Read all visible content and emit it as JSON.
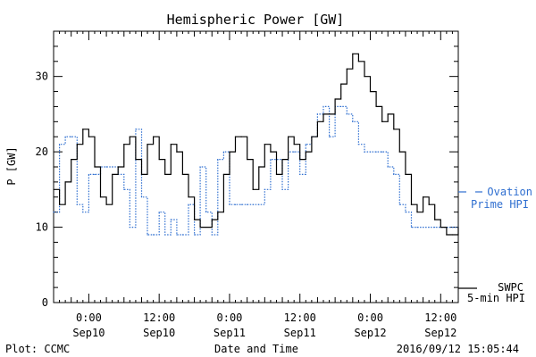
{
  "chart_data": {
    "type": "line",
    "title": "Hemispheric Power [GW]",
    "xlabel": "Date and Time",
    "ylabel": "P [GW]",
    "ylim": [
      0,
      36
    ],
    "xlim": [
      "2016-09-09T18:00",
      "2016-09-12T15:00"
    ],
    "y_ticks": [
      "0",
      "10",
      "20",
      "30"
    ],
    "x_ticks": [
      {
        "time": "2016-09-10T00:00",
        "label1": "0:00",
        "label2": "Sep10"
      },
      {
        "time": "2016-09-10T12:00",
        "label1": "12:00",
        "label2": "Sep10"
      },
      {
        "time": "2016-09-11T00:00",
        "label1": "0:00",
        "label2": "Sep11"
      },
      {
        "time": "2016-09-11T12:00",
        "label1": "12:00",
        "label2": "Sep11"
      },
      {
        "time": "2016-09-12T00:00",
        "label1": "0:00",
        "label2": "Sep12"
      },
      {
        "time": "2016-09-12T12:00",
        "label1": "12:00",
        "label2": "Sep12"
      }
    ],
    "grid": false,
    "series": [
      {
        "name": "SWPC 5-min HPI",
        "legend_lines": [
          "SWPC",
          "5-min HPI"
        ],
        "color": "#000000",
        "style": "solid",
        "x": [
          "2016-09-09T18:00",
          "2016-09-09T19:00",
          "2016-09-09T20:00",
          "2016-09-09T21:00",
          "2016-09-09T22:00",
          "2016-09-09T23:00",
          "2016-09-10T00:00",
          "2016-09-10T01:00",
          "2016-09-10T02:00",
          "2016-09-10T03:00",
          "2016-09-10T04:00",
          "2016-09-10T05:00",
          "2016-09-10T06:00",
          "2016-09-10T07:00",
          "2016-09-10T08:00",
          "2016-09-10T09:00",
          "2016-09-10T10:00",
          "2016-09-10T11:00",
          "2016-09-10T12:00",
          "2016-09-10T13:00",
          "2016-09-10T14:00",
          "2016-09-10T15:00",
          "2016-09-10T16:00",
          "2016-09-10T17:00",
          "2016-09-10T18:00",
          "2016-09-10T19:00",
          "2016-09-10T20:00",
          "2016-09-10T21:00",
          "2016-09-10T22:00",
          "2016-09-10T23:00",
          "2016-09-11T00:00",
          "2016-09-11T01:00",
          "2016-09-11T02:00",
          "2016-09-11T03:00",
          "2016-09-11T04:00",
          "2016-09-11T05:00",
          "2016-09-11T06:00",
          "2016-09-11T07:00",
          "2016-09-11T08:00",
          "2016-09-11T09:00",
          "2016-09-11T10:00",
          "2016-09-11T11:00",
          "2016-09-11T12:00",
          "2016-09-11T13:00",
          "2016-09-11T14:00",
          "2016-09-11T15:00",
          "2016-09-11T16:00",
          "2016-09-11T17:00",
          "2016-09-11T18:00",
          "2016-09-11T19:00",
          "2016-09-11T20:00",
          "2016-09-11T21:00",
          "2016-09-11T22:00",
          "2016-09-11T23:00",
          "2016-09-12T00:00",
          "2016-09-12T01:00",
          "2016-09-12T02:00",
          "2016-09-12T03:00",
          "2016-09-12T04:00",
          "2016-09-12T05:00",
          "2016-09-12T06:00",
          "2016-09-12T07:00",
          "2016-09-12T08:00",
          "2016-09-12T09:00",
          "2016-09-12T10:00",
          "2016-09-12T11:00",
          "2016-09-12T12:00",
          "2016-09-12T13:00",
          "2016-09-12T14:00",
          "2016-09-12T15:00"
        ],
        "y": [
          15,
          13,
          16,
          19,
          21,
          23,
          22,
          18,
          14,
          13,
          17,
          18,
          21,
          22,
          19,
          17,
          21,
          22,
          19,
          17,
          21,
          20,
          17,
          14,
          11,
          10,
          10,
          11,
          12,
          17,
          20,
          22,
          22,
          19,
          15,
          18,
          21,
          20,
          17,
          19,
          22,
          21,
          19,
          20,
          22,
          24,
          25,
          25,
          27,
          29,
          31,
          33,
          32,
          30,
          28,
          26,
          24,
          25,
          23,
          20,
          17,
          13,
          12,
          14,
          13,
          11,
          10,
          9,
          9,
          10
        ]
      },
      {
        "name": "Ovation Prime HPI",
        "legend_lines": [
          "Ovation",
          "Prime HPI"
        ],
        "color": "#2f6fd0",
        "style": "dotted",
        "x": [
          "2016-09-09T18:00",
          "2016-09-09T19:00",
          "2016-09-09T20:00",
          "2016-09-09T21:00",
          "2016-09-09T22:00",
          "2016-09-09T23:00",
          "2016-09-10T00:00",
          "2016-09-10T01:00",
          "2016-09-10T02:00",
          "2016-09-10T03:00",
          "2016-09-10T04:00",
          "2016-09-10T05:00",
          "2016-09-10T06:00",
          "2016-09-10T07:00",
          "2016-09-10T08:00",
          "2016-09-10T09:00",
          "2016-09-10T10:00",
          "2016-09-10T11:00",
          "2016-09-10T12:00",
          "2016-09-10T13:00",
          "2016-09-10T14:00",
          "2016-09-10T15:00",
          "2016-09-10T16:00",
          "2016-09-10T17:00",
          "2016-09-10T18:00",
          "2016-09-10T19:00",
          "2016-09-10T20:00",
          "2016-09-10T21:00",
          "2016-09-10T22:00",
          "2016-09-10T23:00",
          "2016-09-11T00:00",
          "2016-09-11T01:00",
          "2016-09-11T02:00",
          "2016-09-11T03:00",
          "2016-09-11T04:00",
          "2016-09-11T05:00",
          "2016-09-11T06:00",
          "2016-09-11T07:00",
          "2016-09-11T08:00",
          "2016-09-11T09:00",
          "2016-09-11T10:00",
          "2016-09-11T11:00",
          "2016-09-11T12:00",
          "2016-09-11T13:00",
          "2016-09-11T14:00",
          "2016-09-11T15:00",
          "2016-09-11T16:00",
          "2016-09-11T17:00",
          "2016-09-11T18:00",
          "2016-09-11T19:00",
          "2016-09-11T20:00",
          "2016-09-11T21:00",
          "2016-09-11T22:00",
          "2016-09-11T23:00",
          "2016-09-12T00:00",
          "2016-09-12T01:00",
          "2016-09-12T02:00",
          "2016-09-12T03:00",
          "2016-09-12T04:00",
          "2016-09-12T05:00",
          "2016-09-12T06:00",
          "2016-09-12T07:00",
          "2016-09-12T08:00",
          "2016-09-12T09:00",
          "2016-09-12T10:00",
          "2016-09-12T11:00",
          "2016-09-12T12:00",
          "2016-09-12T13:00",
          "2016-09-12T14:00",
          "2016-09-12T15:00"
        ],
        "y": [
          12,
          21,
          22,
          22,
          13,
          12,
          17,
          17,
          18,
          18,
          18,
          17,
          15,
          10,
          23,
          14,
          9,
          9,
          12,
          9,
          11,
          9,
          9,
          13,
          9,
          18,
          12,
          9,
          19,
          20,
          13,
          13,
          13,
          13,
          13,
          13,
          15,
          19,
          19,
          15,
          20,
          20,
          17,
          21,
          22,
          25,
          26,
          22,
          26,
          26,
          25,
          24,
          21,
          20,
          20,
          20,
          20,
          18,
          17,
          13,
          12,
          10,
          10,
          10,
          10,
          10,
          10,
          10,
          10,
          10
        ]
      }
    ]
  },
  "footer": {
    "left": "Plot: CCMC",
    "center": "Date and Time",
    "right": "2016/09/12 15:05:44"
  }
}
